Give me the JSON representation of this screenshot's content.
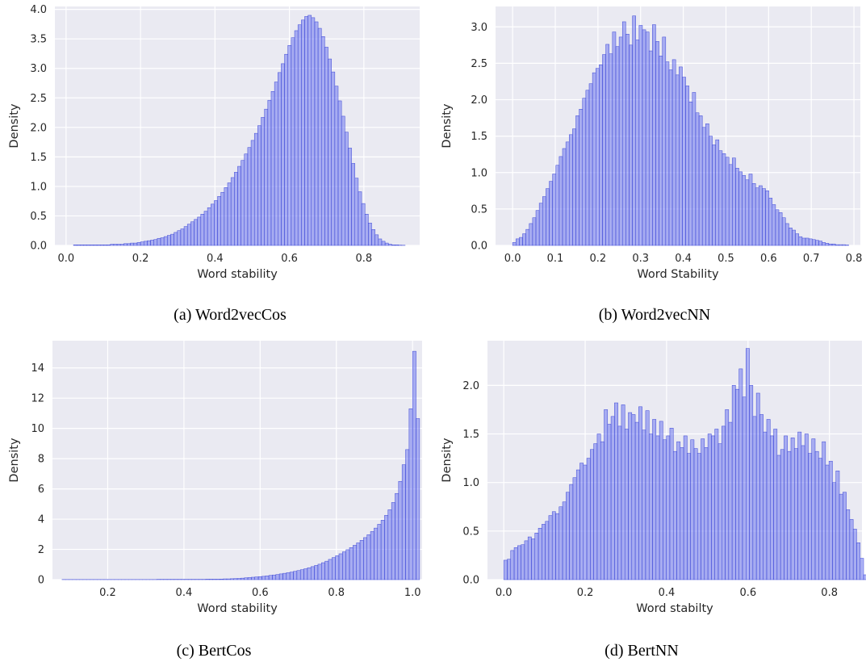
{
  "style": {
    "plot_bg": "#eaeaf2",
    "grid": "#ffffff",
    "bar_fill": "#6f78f0",
    "bar_edge": "#3b46d6"
  },
  "chart_data": [
    {
      "id": "a",
      "type": "bar",
      "caption": "(a) Word2vecCos",
      "xlabel": "Word stability",
      "ylabel": "Density",
      "xlim": [
        -0.03,
        0.95
      ],
      "ylim": [
        0,
        4.05
      ],
      "xticks": [
        0.0,
        0.2,
        0.4,
        0.6,
        0.8
      ],
      "xtick_labels": [
        "0.0",
        "0.2",
        "0.4",
        "0.6",
        "0.8"
      ],
      "yticks": [
        0,
        0.5,
        1.0,
        1.5,
        2.0,
        2.5,
        3.0,
        3.5,
        4.0
      ],
      "ytick_labels": [
        "0.0",
        "0.5",
        "1.0",
        "1.5",
        "2.0",
        "2.5",
        "3.0",
        "3.5",
        "4.0"
      ],
      "bin_start": 0.02,
      "bin_width": 0.009,
      "values": [
        0.01,
        0.01,
        0.01,
        0.01,
        0.01,
        0.01,
        0.01,
        0.01,
        0.01,
        0.01,
        0.01,
        0.02,
        0.02,
        0.02,
        0.02,
        0.03,
        0.03,
        0.04,
        0.04,
        0.05,
        0.06,
        0.07,
        0.08,
        0.09,
        0.1,
        0.12,
        0.13,
        0.15,
        0.17,
        0.19,
        0.22,
        0.25,
        0.28,
        0.32,
        0.36,
        0.4,
        0.44,
        0.48,
        0.53,
        0.58,
        0.64,
        0.7,
        0.76,
        0.83,
        0.9,
        0.98,
        1.06,
        1.15,
        1.24,
        1.34,
        1.44,
        1.55,
        1.66,
        1.78,
        1.9,
        2.03,
        2.17,
        2.31,
        2.46,
        2.61,
        2.77,
        2.93,
        3.08,
        3.24,
        3.39,
        3.52,
        3.64,
        3.74,
        3.82,
        3.88,
        3.9,
        3.86,
        3.79,
        3.68,
        3.54,
        3.36,
        3.16,
        2.94,
        2.7,
        2.45,
        2.19,
        1.92,
        1.65,
        1.39,
        1.14,
        0.91,
        0.71,
        0.53,
        0.38,
        0.27,
        0.18,
        0.11,
        0.07,
        0.04,
        0.02,
        0.01,
        0.01,
        0.005,
        0.003
      ]
    },
    {
      "id": "b",
      "type": "bar",
      "caption": "(b) Word2vecNN",
      "xlabel": "Word Stability",
      "ylabel": "Density",
      "xlim": [
        -0.04,
        0.815
      ],
      "ylim": [
        0,
        3.28
      ],
      "xticks": [
        0.0,
        0.1,
        0.2,
        0.3,
        0.4,
        0.5,
        0.6,
        0.7,
        0.8
      ],
      "xtick_labels": [
        "0.0",
        "0.1",
        "0.2",
        "0.3",
        "0.4",
        "0.5",
        "0.6",
        "0.7",
        "0.8"
      ],
      "yticks": [
        0,
        0.5,
        1.0,
        1.5,
        2.0,
        2.5,
        3.0
      ],
      "ytick_labels": [
        "0.0",
        "0.5",
        "1.0",
        "1.5",
        "2.0",
        "2.5",
        "3.0"
      ],
      "bin_start": 0.0,
      "bin_width": 0.0078,
      "values": [
        0.04,
        0.09,
        0.11,
        0.16,
        0.22,
        0.3,
        0.38,
        0.48,
        0.58,
        0.67,
        0.78,
        0.88,
        0.98,
        1.1,
        1.22,
        1.33,
        1.42,
        1.52,
        1.6,
        1.78,
        1.87,
        2.02,
        2.13,
        2.22,
        2.37,
        2.43,
        2.48,
        2.62,
        2.76,
        2.63,
        2.93,
        2.73,
        2.86,
        3.07,
        2.9,
        2.75,
        3.15,
        2.82,
        3.02,
        2.96,
        2.93,
        2.67,
        3.03,
        2.8,
        2.6,
        2.86,
        2.52,
        2.41,
        2.55,
        2.34,
        2.45,
        2.31,
        2.19,
        1.97,
        2.1,
        1.82,
        1.78,
        1.62,
        1.67,
        1.5,
        1.38,
        1.45,
        1.3,
        1.26,
        1.21,
        1.11,
        1.2,
        1.06,
        1.01,
        0.96,
        0.9,
        0.98,
        0.85,
        0.79,
        0.82,
        0.78,
        0.75,
        0.65,
        0.56,
        0.49,
        0.45,
        0.38,
        0.3,
        0.24,
        0.21,
        0.16,
        0.12,
        0.1,
        0.1,
        0.09,
        0.08,
        0.07,
        0.06,
        0.04,
        0.03,
        0.02,
        0.02,
        0.01,
        0.01,
        0.01,
        0.005
      ]
    },
    {
      "id": "c",
      "type": "bar",
      "caption": "(c) BertCos",
      "xlabel": "Word stability",
      "ylabel": "Density",
      "xlim": [
        0.055,
        1.025
      ],
      "ylim": [
        0,
        15.8
      ],
      "xticks": [
        0.2,
        0.4,
        0.6,
        0.8,
        1.0
      ],
      "xtick_labels": [
        "0.2",
        "0.4",
        "0.6",
        "0.8",
        "1.0"
      ],
      "yticks": [
        0,
        2,
        4,
        6,
        8,
        10,
        12,
        14
      ],
      "ytick_labels": [
        "0",
        "2",
        "4",
        "6",
        "8",
        "10",
        "12",
        "14"
      ],
      "bin_start": 0.08,
      "bin_width": 0.0092,
      "values": [
        0.01,
        0.01,
        0.01,
        0.01,
        0.01,
        0.01,
        0.01,
        0.01,
        0.01,
        0.01,
        0.01,
        0.01,
        0.01,
        0.01,
        0.01,
        0.01,
        0.01,
        0.01,
        0.01,
        0.01,
        0.01,
        0.01,
        0.01,
        0.01,
        0.01,
        0.01,
        0.01,
        0.02,
        0.02,
        0.02,
        0.02,
        0.02,
        0.02,
        0.02,
        0.02,
        0.02,
        0.02,
        0.02,
        0.02,
        0.02,
        0.02,
        0.03,
        0.03,
        0.03,
        0.03,
        0.04,
        0.05,
        0.05,
        0.06,
        0.07,
        0.08,
        0.1,
        0.12,
        0.14,
        0.16,
        0.18,
        0.2,
        0.22,
        0.25,
        0.28,
        0.31,
        0.34,
        0.38,
        0.42,
        0.46,
        0.5,
        0.55,
        0.6,
        0.66,
        0.72,
        0.79,
        0.86,
        0.94,
        1.02,
        1.12,
        1.22,
        1.34,
        1.46,
        1.58,
        1.71,
        1.84,
        1.98,
        2.12,
        2.27,
        2.43,
        2.6,
        2.78,
        2.97,
        3.18,
        3.41,
        3.66,
        3.93,
        4.25,
        4.62,
        5.1,
        5.7,
        6.5,
        7.6,
        8.6,
        11.3,
        15.1,
        10.65
      ]
    },
    {
      "id": "d",
      "type": "bar",
      "caption": "(d) BertNN",
      "xlabel": "Word stabilty",
      "ylabel": "Density",
      "xlim": [
        -0.04,
        0.88
      ],
      "ylim": [
        0,
        2.46
      ],
      "xticks": [
        0.0,
        0.2,
        0.4,
        0.6,
        0.8
      ],
      "xtick_labels": [
        "0.0",
        "0.2",
        "0.4",
        "0.6",
        "0.8"
      ],
      "yticks": [
        0,
        0.5,
        1.0,
        1.5,
        2.0
      ],
      "ytick_labels": [
        "0.0",
        "0.5",
        "1.0",
        "1.5",
        "2.0"
      ],
      "bin_start": 0.0,
      "bin_width": 0.0085,
      "values": [
        0.2,
        0.21,
        0.3,
        0.33,
        0.35,
        0.36,
        0.4,
        0.44,
        0.42,
        0.48,
        0.53,
        0.57,
        0.6,
        0.66,
        0.7,
        0.68,
        0.75,
        0.8,
        0.9,
        0.98,
        1.05,
        1.13,
        1.2,
        1.18,
        1.25,
        1.34,
        1.4,
        1.5,
        1.42,
        1.75,
        1.6,
        1.68,
        1.82,
        1.58,
        1.8,
        1.55,
        1.72,
        1.7,
        1.62,
        1.78,
        1.54,
        1.74,
        1.5,
        1.65,
        1.48,
        1.63,
        1.44,
        1.48,
        1.56,
        1.32,
        1.42,
        1.36,
        1.48,
        1.3,
        1.44,
        1.35,
        1.3,
        1.45,
        1.36,
        1.5,
        1.48,
        1.55,
        1.4,
        1.58,
        1.75,
        1.62,
        2.0,
        1.96,
        2.17,
        1.88,
        2.38,
        2.0,
        1.68,
        1.92,
        1.7,
        1.52,
        1.65,
        1.48,
        1.55,
        1.28,
        1.34,
        1.48,
        1.32,
        1.46,
        1.35,
        1.52,
        1.38,
        1.5,
        1.3,
        1.45,
        1.32,
        1.25,
        1.42,
        1.18,
        1.22,
        1.0,
        1.12,
        0.88,
        0.9,
        0.72,
        0.62,
        0.52,
        0.38,
        0.22,
        0.05
      ]
    }
  ]
}
